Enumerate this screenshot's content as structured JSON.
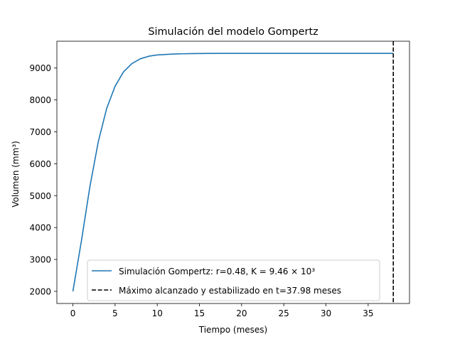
{
  "chart_data": {
    "type": "line",
    "title": "Simulación del modelo Gompertz",
    "xlabel": "Tiempo (meses)",
    "ylabel": "Volumen (mm³)",
    "xlim": [
      -1.9,
      39.9
    ],
    "ylim": [
      1620,
      9840
    ],
    "xticks": [
      0,
      5,
      10,
      15,
      20,
      25,
      30,
      35
    ],
    "yticks": [
      2000,
      3000,
      4000,
      5000,
      6000,
      7000,
      8000,
      9000
    ],
    "legend_position": "lower-right",
    "series": [
      {
        "name": "Simulación Gompertz: r=0.48, K = 9.46 × 10³",
        "color": "#1f77b4",
        "style": "solid",
        "x": [
          0,
          1,
          2,
          3,
          4,
          5,
          6,
          7,
          8,
          9,
          10,
          12,
          14,
          16,
          18,
          20,
          25,
          30,
          35,
          37.98
        ],
        "y": [
          2000,
          3570,
          5260,
          6680,
          7730,
          8430,
          8880,
          9140,
          9290,
          9370,
          9410,
          9440,
          9452,
          9457,
          9459,
          9460,
          9460,
          9460,
          9460,
          9460
        ]
      },
      {
        "name": "Máximo alcanzado y estabilizado en t=37.98 meses",
        "color": "#000000",
        "style": "dashed",
        "vline_x": 37.98
      }
    ]
  }
}
